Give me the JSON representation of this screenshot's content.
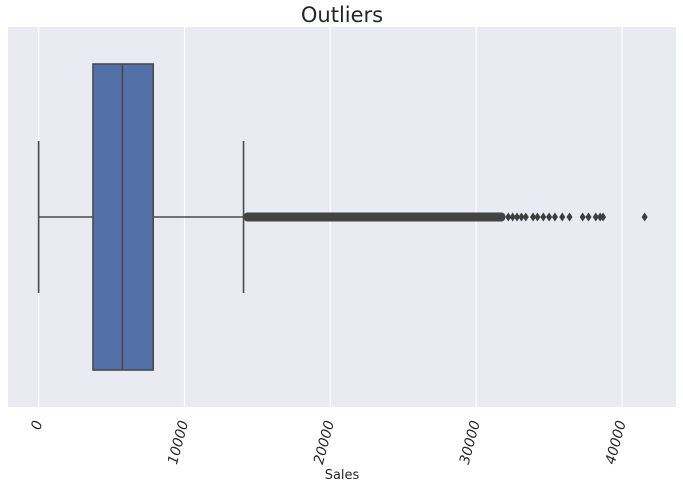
{
  "chart_data": {
    "type": "box",
    "orientation": "horizontal",
    "title": "Outliers",
    "xlabel": "Sales",
    "ylabel": "",
    "xlim": [
      -2100,
      43700
    ],
    "xticks": [
      0,
      10000,
      20000,
      30000,
      40000
    ],
    "xtick_labels": [
      "0",
      "10000",
      "20000",
      "30000",
      "40000"
    ],
    "xtick_rotation": -75,
    "grid": true,
    "colors": {
      "box_fill": "#5470A8",
      "line": "#4a4a4a",
      "background": "#EAEAF2",
      "grid": "#ffffff"
    },
    "box": {
      "whisker_low": 0,
      "q1": 3727,
      "median": 5744,
      "q3": 7856,
      "whisker_high": 14049
    },
    "outliers": {
      "dense_range": [
        14049,
        32000
      ],
      "points": [
        32200,
        32500,
        32800,
        33100,
        33400,
        33900,
        34200,
        34600,
        35000,
        35400,
        35900,
        36400,
        37300,
        37700,
        38200,
        38500,
        38700,
        41551
      ]
    }
  }
}
